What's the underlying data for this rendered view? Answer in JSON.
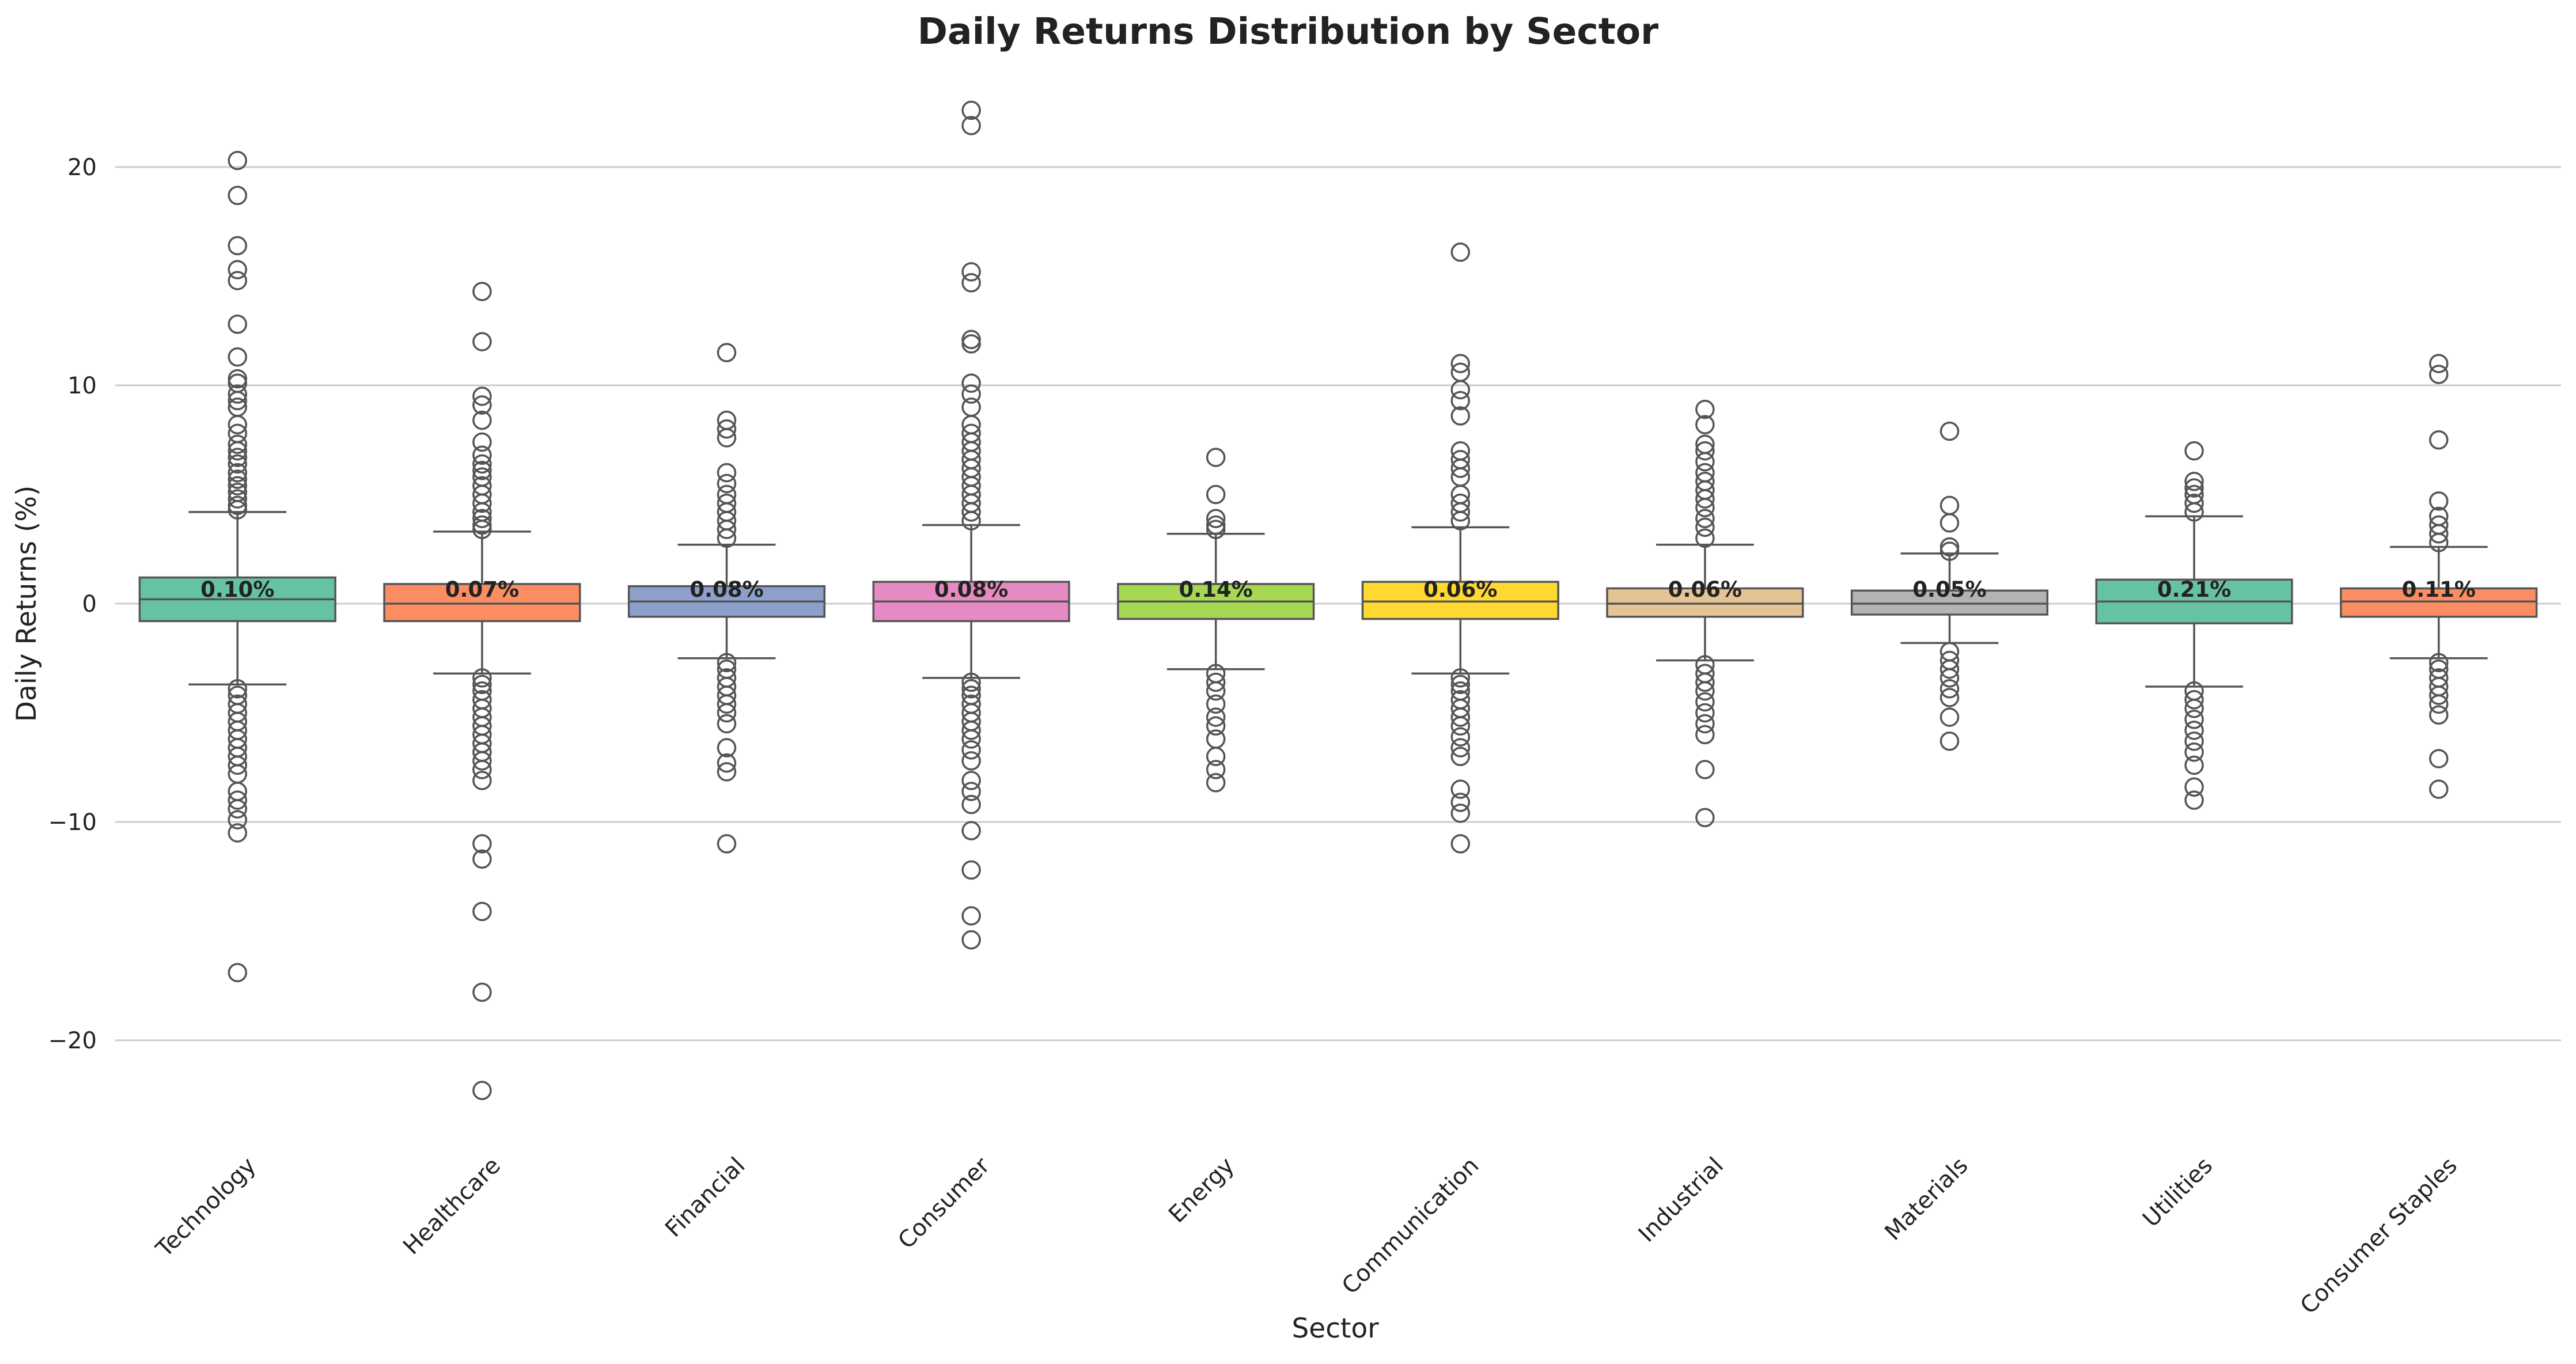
{
  "chart_data": {
    "type": "box",
    "title": "Daily Returns Distribution by Sector",
    "xlabel": "Sector",
    "ylabel": "Daily Returns (%)",
    "ylim": [
      -25,
      24
    ],
    "y_ticks": [
      20,
      10,
      0,
      -10,
      -20
    ],
    "y_tick_labels": [
      "20",
      "10",
      "0",
      "−10",
      "−20"
    ],
    "grid": "horizontal",
    "legend": "none",
    "categories": [
      "Technology",
      "Healthcare",
      "Financial",
      "Consumer",
      "Energy",
      "Communication",
      "Industrial",
      "Materials",
      "Utilities",
      "Consumer Staples"
    ],
    "series": [
      {
        "category": "Technology",
        "color": "#66c2a5",
        "mean_label": "0.10%",
        "q1": -0.8,
        "median": 0.2,
        "q3": 1.2,
        "whisker_low": -3.7,
        "whisker_high": 4.2,
        "outliers": [
          20.3,
          18.7,
          16.4,
          15.3,
          14.8,
          12.8,
          11.3,
          10.3,
          10.1,
          9.6,
          9.3,
          9.0,
          8.2,
          7.8,
          7.3,
          7.0,
          6.7,
          6.4,
          6.0,
          5.7,
          5.4,
          5.1,
          4.8,
          4.5,
          4.3,
          -3.9,
          -4.2,
          -4.6,
          -5.0,
          -5.4,
          -5.8,
          -6.2,
          -6.6,
          -7.0,
          -7.4,
          -7.8,
          -8.6,
          -9.0,
          -9.4,
          -9.9,
          -10.5,
          -16.9
        ]
      },
      {
        "category": "Healthcare",
        "color": "#fc8d62",
        "mean_label": "0.07%",
        "q1": -0.8,
        "median": 0.0,
        "q3": 0.9,
        "whisker_low": -3.2,
        "whisker_high": 3.3,
        "outliers": [
          14.3,
          12.0,
          9.5,
          9.1,
          8.4,
          7.4,
          6.8,
          6.4,
          6.1,
          5.8,
          5.4,
          5.0,
          4.6,
          4.2,
          3.9,
          3.6,
          3.4,
          -3.4,
          -3.7,
          -4.0,
          -4.4,
          -4.8,
          -5.2,
          -5.6,
          -6.0,
          -6.4,
          -6.8,
          -7.2,
          -7.6,
          -8.1,
          -11.0,
          -11.7,
          -14.1,
          -17.8,
          -22.3
        ]
      },
      {
        "category": "Financial",
        "color": "#8da0cb",
        "mean_label": "0.08%",
        "q1": -0.6,
        "median": 0.1,
        "q3": 0.8,
        "whisker_low": -2.5,
        "whisker_high": 2.7,
        "outliers": [
          11.5,
          8.4,
          8.0,
          7.6,
          6.0,
          5.5,
          5.0,
          4.6,
          4.2,
          3.8,
          3.4,
          3.0,
          -2.7,
          -3.0,
          -3.4,
          -3.8,
          -4.2,
          -4.6,
          -5.0,
          -5.5,
          -6.6,
          -7.3,
          -7.7,
          -11.0
        ]
      },
      {
        "category": "Consumer",
        "color": "#e78ac3",
        "mean_label": "0.08%",
        "q1": -0.8,
        "median": 0.1,
        "q3": 1.0,
        "whisker_low": -3.4,
        "whisker_high": 3.6,
        "outliers": [
          22.6,
          21.9,
          15.2,
          14.7,
          12.1,
          11.9,
          10.1,
          9.6,
          9.0,
          8.2,
          7.8,
          7.4,
          7.0,
          6.6,
          6.2,
          5.8,
          5.4,
          5.0,
          4.6,
          4.2,
          3.8,
          -3.6,
          -3.9,
          -4.2,
          -4.6,
          -5.0,
          -5.4,
          -5.8,
          -6.2,
          -6.7,
          -7.2,
          -8.1,
          -8.6,
          -9.2,
          -10.4,
          -12.2,
          -14.3,
          -15.4
        ]
      },
      {
        "category": "Energy",
        "color": "#a6d854",
        "mean_label": "0.14%",
        "q1": -0.7,
        "median": 0.1,
        "q3": 0.9,
        "whisker_low": -3.0,
        "whisker_high": 3.2,
        "outliers": [
          6.7,
          5.0,
          3.9,
          3.6,
          3.4,
          -3.2,
          -3.6,
          -4.0,
          -4.6,
          -5.2,
          -5.6,
          -6.2,
          -7.0,
          -7.6,
          -8.2
        ]
      },
      {
        "category": "Communication",
        "color": "#ffd92f",
        "mean_label": "0.06%",
        "q1": -0.7,
        "median": 0.1,
        "q3": 1.0,
        "whisker_low": -3.2,
        "whisker_high": 3.5,
        "outliers": [
          16.1,
          11.0,
          10.6,
          9.8,
          9.3,
          8.6,
          7.0,
          6.6,
          6.2,
          5.8,
          5.0,
          4.6,
          4.2,
          3.8,
          -3.4,
          -3.7,
          -4.0,
          -4.4,
          -4.8,
          -5.2,
          -5.6,
          -6.1,
          -6.6,
          -7.0,
          -8.5,
          -9.1,
          -9.6,
          -11.0
        ]
      },
      {
        "category": "Industrial",
        "color": "#e5c494",
        "mean_label": "0.06%",
        "q1": -0.6,
        "median": 0.0,
        "q3": 0.7,
        "whisker_low": -2.6,
        "whisker_high": 2.7,
        "outliers": [
          8.9,
          8.2,
          7.3,
          7.0,
          6.5,
          6.0,
          5.6,
          5.2,
          4.8,
          4.4,
          3.9,
          3.5,
          3.0,
          -2.8,
          -3.2,
          -3.6,
          -4.0,
          -4.5,
          -5.0,
          -5.5,
          -6.0,
          -7.6,
          -9.8
        ]
      },
      {
        "category": "Materials",
        "color": "#b3b3b3",
        "mean_label": "0.05%",
        "q1": -0.5,
        "median": 0.0,
        "q3": 0.6,
        "whisker_low": -1.8,
        "whisker_high": 2.3,
        "outliers": [
          7.9,
          4.5,
          3.7,
          2.6,
          2.4,
          -2.2,
          -2.6,
          -3.0,
          -3.4,
          -3.9,
          -4.3,
          -5.2,
          -6.3
        ]
      },
      {
        "category": "Utilities",
        "color": "#66c2a5",
        "mean_label": "0.21%",
        "q1": -0.9,
        "median": 0.1,
        "q3": 1.1,
        "whisker_low": -3.8,
        "whisker_high": 4.0,
        "outliers": [
          7.0,
          5.6,
          5.3,
          5.0,
          4.6,
          4.2,
          -4.0,
          -4.4,
          -4.8,
          -5.3,
          -5.8,
          -6.3,
          -6.8,
          -7.4,
          -8.4,
          -9.0
        ]
      },
      {
        "category": "Consumer Staples",
        "color": "#fc8d62",
        "mean_label": "0.11%",
        "q1": -0.6,
        "median": 0.1,
        "q3": 0.7,
        "whisker_low": -2.5,
        "whisker_high": 2.6,
        "outliers": [
          11.0,
          10.5,
          7.5,
          4.7,
          4.0,
          3.6,
          3.2,
          2.8,
          -2.7,
          -3.0,
          -3.4,
          -3.8,
          -4.2,
          -4.6,
          -5.1,
          -7.1,
          -8.5
        ]
      }
    ]
  }
}
